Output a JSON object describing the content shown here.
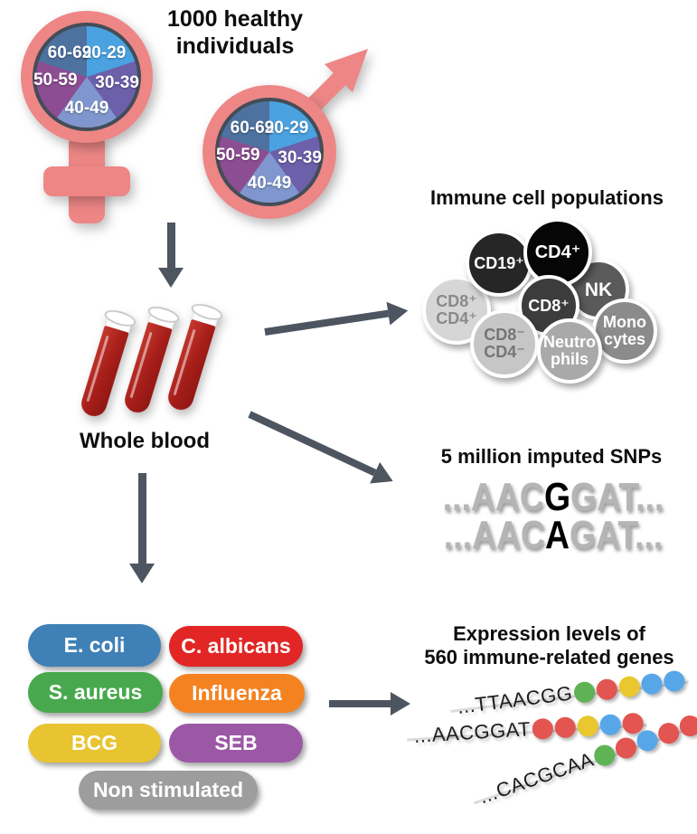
{
  "header": {
    "title": "1000 healthy\nindividuals"
  },
  "age_pies": {
    "labels": [
      "20-29",
      "30-39",
      "40-49",
      "50-59",
      "60-69"
    ],
    "slice_colors": {
      "20-29": "#4aa2e0",
      "30-39": "#6c60ab",
      "40-49": "#7f97ce",
      "50-59": "#8d4d93",
      "60-69": "#4d72a0"
    },
    "symbol_color": "#ee8686"
  },
  "whole_blood": {
    "label": "Whole blood"
  },
  "immune_cells": {
    "title": "Immune cell populations",
    "items": [
      {
        "label": "CD8⁺\nCD4⁺",
        "bg": "#d6d6d6",
        "fg": "#8a8a8a"
      },
      {
        "label": "NK",
        "bg": "#5a5a5a",
        "fg": "#ffffff"
      },
      {
        "label": "CD19⁺",
        "bg": "#262626",
        "fg": "#ffffff"
      },
      {
        "label": "CD4⁺",
        "bg": "#060606",
        "fg": "#ffffff"
      },
      {
        "label": "CD8⁺",
        "bg": "#3c3c3c",
        "fg": "#ffffff"
      },
      {
        "label": "CD8⁻\nCD4⁻",
        "bg": "#c6c6c6",
        "fg": "#757575"
      },
      {
        "label": "Mono\ncytes",
        "bg": "#8b8b8b",
        "fg": "#ffffff"
      },
      {
        "label": "Neutro\nphils",
        "bg": "#a9a9a9",
        "fg": "#ffffff"
      }
    ]
  },
  "snps": {
    "title": "5 million imputed SNPs",
    "sequences": [
      {
        "pre": "...AAC",
        "snp": "G",
        "post": "GAT..."
      },
      {
        "pre": "...AAC",
        "snp": "A",
        "post": "GAT..."
      }
    ]
  },
  "stimuli": {
    "items": [
      {
        "label": "E. coli",
        "bg": "#3f81b6"
      },
      {
        "label": "C. albicans",
        "bg": "#e12625"
      },
      {
        "label": "S. aureus",
        "bg": "#48a84d"
      },
      {
        "label": "Influenza",
        "bg": "#f58220"
      },
      {
        "label": "BCG",
        "bg": "#e7c430"
      },
      {
        "label": "SEB",
        "bg": "#9b58a5"
      },
      {
        "label": "Non stimulated",
        "bg": "#9d9d9d"
      }
    ]
  },
  "expression": {
    "title": "Expression levels of\n560 immune-related genes",
    "strands": [
      {
        "seq": "...TTAACGG",
        "dots": [
          "green",
          "red",
          "yellow",
          "blue",
          "blue"
        ]
      },
      {
        "seq": "...AACGGAT",
        "dots": [
          "red",
          "red",
          "yellow",
          "blue",
          "red"
        ]
      },
      {
        "seq": "...CACGCAA",
        "dots": [
          "green",
          "red",
          "blue",
          "red",
          "red"
        ]
      }
    ],
    "dot_colors": {
      "green": "#5fb354",
      "red": "#e25550",
      "yellow": "#eac72e",
      "blue": "#57a7e8"
    }
  },
  "arrow_color": "#4d5560"
}
